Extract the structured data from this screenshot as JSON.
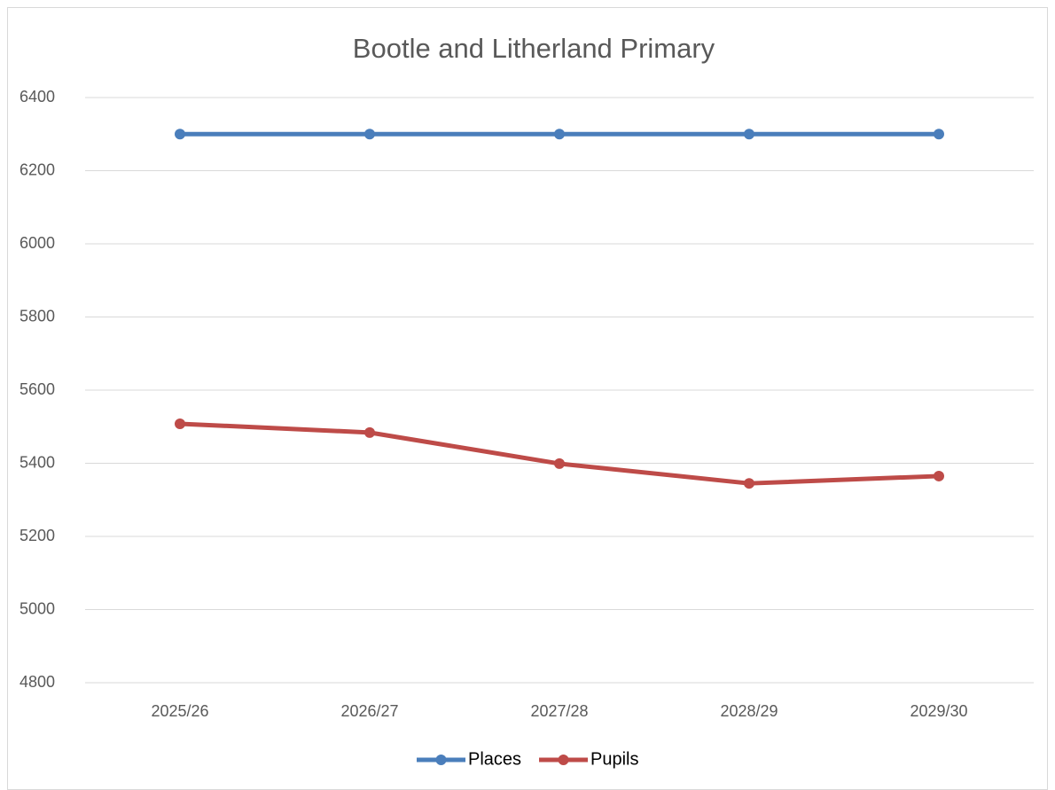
{
  "chart_data": {
    "type": "line",
    "title": "Bootle and Litherland Primary",
    "categories": [
      "2025/26",
      "2026/27",
      "2027/28",
      "2028/29",
      "2029/30"
    ],
    "series": [
      {
        "name": "Places",
        "color": "#4a7ebb",
        "values": [
          6300,
          6300,
          6300,
          6300,
          6300
        ]
      },
      {
        "name": "Pupils",
        "color": "#be4b48",
        "values": [
          5508,
          5484,
          5399,
          5345,
          5365
        ]
      }
    ],
    "ylim": [
      4800,
      6400
    ],
    "yticks": [
      4800,
      5000,
      5200,
      5400,
      5600,
      5800,
      6000,
      6200,
      6400
    ],
    "grid": true,
    "legend": "bottom"
  }
}
